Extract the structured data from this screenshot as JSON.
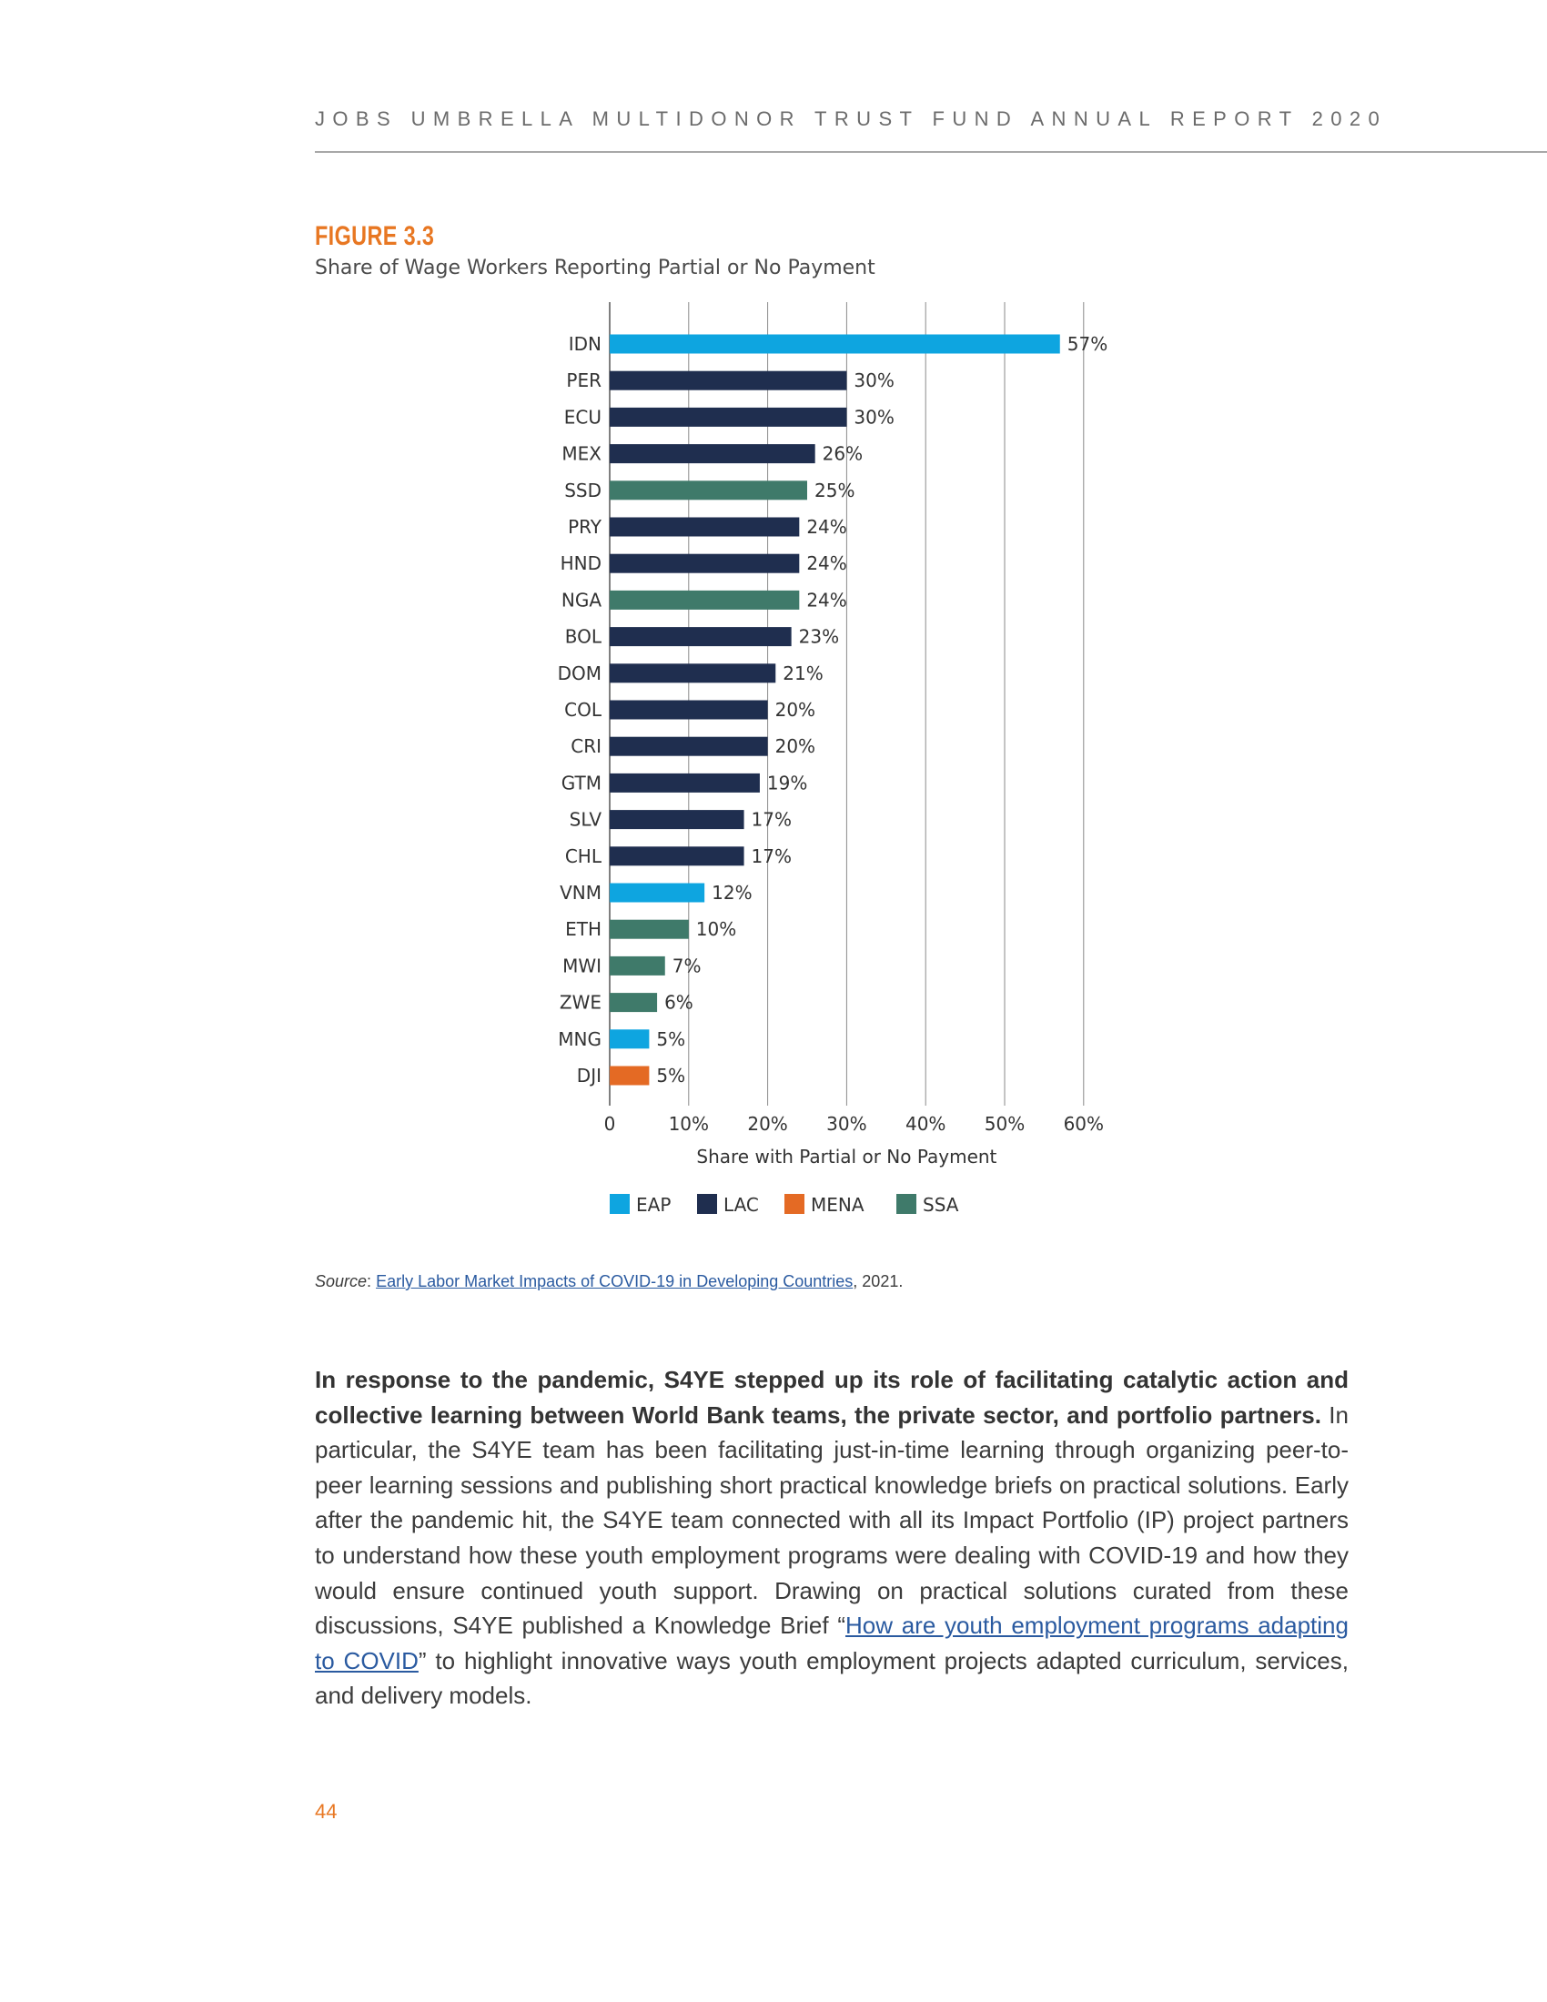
{
  "header": {
    "running_title": "JOBS UMBRELLA MULTIDONOR TRUST FUND ANNUAL REPORT 2020"
  },
  "figure": {
    "label": "FIGURE 3.3",
    "title": "Share of Wage Workers Reporting Partial or No Payment"
  },
  "chart_data": {
    "type": "bar",
    "orientation": "horizontal",
    "categories": [
      "IDN",
      "PER",
      "ECU",
      "MEX",
      "SSD",
      "PRY",
      "HND",
      "NGA",
      "BOL",
      "DOM",
      "COL",
      "CRI",
      "GTM",
      "SLV",
      "CHL",
      "VNM",
      "ETH",
      "MWI",
      "ZWE",
      "MNG",
      "DJI"
    ],
    "values": [
      57,
      30,
      30,
      26,
      25,
      24,
      24,
      24,
      23,
      21,
      20,
      20,
      19,
      17,
      17,
      12,
      10,
      7,
      6,
      5,
      5
    ],
    "value_labels": [
      "57%",
      "30%",
      "30%",
      "26%",
      "25%",
      "24%",
      "24%",
      "24%",
      "23%",
      "21%",
      "20%",
      "20%",
      "19%",
      "17%",
      "17%",
      "12%",
      "10%",
      "7%",
      "6%",
      "5%",
      "5%"
    ],
    "regions": [
      "EAP",
      "LAC",
      "LAC",
      "LAC",
      "SSA",
      "LAC",
      "LAC",
      "SSA",
      "LAC",
      "LAC",
      "LAC",
      "LAC",
      "LAC",
      "LAC",
      "LAC",
      "EAP",
      "SSA",
      "SSA",
      "SSA",
      "EAP",
      "MENA"
    ],
    "xlabel": "Share with Partial or No Payment",
    "ylabel": "",
    "xlim": [
      0,
      60
    ],
    "xticks": [
      "0",
      "10%",
      "20%",
      "30%",
      "40%",
      "50%",
      "60%"
    ],
    "grid": true,
    "legend": [
      {
        "name": "EAP",
        "color": "#0ea5e0"
      },
      {
        "name": "LAC",
        "color": "#1f2e4f"
      },
      {
        "name": "MENA",
        "color": "#e46a24"
      },
      {
        "name": "SSA",
        "color": "#3f7a6a"
      }
    ],
    "legend_position": "bottom"
  },
  "source": {
    "prefix": "Source",
    "separator": ": ",
    "link_text": "Early Labor Market Impacts of COVID-19 in Developing Countries",
    "suffix": ", 2021."
  },
  "body": {
    "bold_lead": "In response to the pandemic, S4YE stepped up its role of facilitating catalytic action and collective learning between World Bank teams, the private sector, and portfolio partners.",
    "text_1": " In particular, the S4YE team has been facilitating just-in-time learning through organizing peer-to-peer learning sessions and publishing short practical knowledge briefs on practical solutions. Early after the pandemic hit, the S4YE team connected with all its Impact Portfolio (IP) project partners to understand how these youth employment programs were dealing with COVID-19 and how they would ensure continued youth support. Drawing on practical solutions curated from these discussions, S4YE published a Knowledge Brief “",
    "link": "How are youth employment programs adapting to COVID",
    "text_2": "” to highlight innovative ways youth employment projects adapted curriculum, services, and delivery models."
  },
  "page_number": "44"
}
